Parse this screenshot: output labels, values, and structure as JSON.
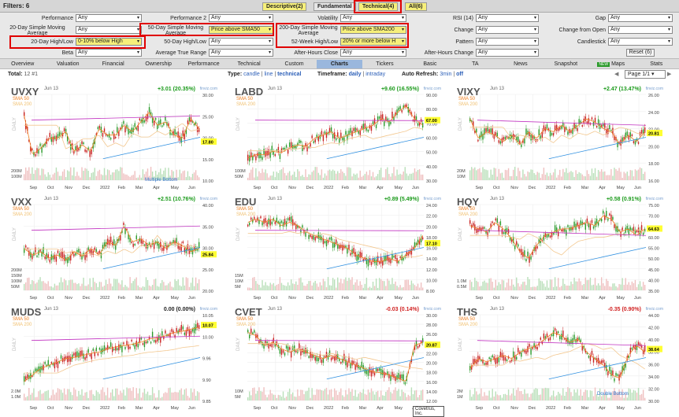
{
  "filters_label": "Filters: 6",
  "filter_tabs": [
    "Descriptive(2)",
    "Fundamental",
    "Technical(4)",
    "All(6)"
  ],
  "filter_rows": [
    [
      [
        "Performance",
        "Any"
      ],
      [
        "Performance 2",
        "Any"
      ],
      [
        "Volatility",
        "Any"
      ],
      [
        "RSI (14)",
        "Any"
      ],
      [
        "Gap",
        "Any"
      ]
    ],
    [
      [
        "20-Day Simple Moving Average",
        "Any"
      ],
      [
        "50-Day Simple Moving Average",
        "Price above SMA50"
      ],
      [
        "200-Day Simple Moving Average",
        "Price above SMA200"
      ],
      [
        "Change",
        "Any"
      ],
      [
        "Change from Open",
        "Any"
      ]
    ],
    [
      [
        "20-Day High/Low",
        "0-10% below High"
      ],
      [
        "50-Day High/Low",
        "Any"
      ],
      [
        "52-Week High/Low",
        "20% or more below H"
      ],
      [
        "Pattern",
        "Any"
      ],
      [
        "Candlestick",
        "Any"
      ]
    ],
    [
      [
        "Beta",
        "Any"
      ],
      [
        "Average True Range",
        "Any"
      ],
      [
        "After-Hours Close",
        "Any"
      ],
      [
        "After-Hours Change",
        "Any"
      ],
      [
        "",
        ""
      ]
    ]
  ],
  "reset_label": "Reset (6)",
  "views": [
    "Overview",
    "Valuation",
    "Financial",
    "Ownership",
    "Performance",
    "Technical",
    "Custom",
    "Charts",
    "Tickers",
    "Basic",
    "TA",
    "News",
    "Snapshot",
    "Maps",
    "Stats"
  ],
  "maps_badge": "NEW",
  "status": {
    "total_label": "Total:",
    "total": "12 #1",
    "type_label": "Type:",
    "type_candle": "candle",
    "type_line": "line",
    "type_technical": "technical",
    "timeframe_label": "Timeframe:",
    "timeframe_daily": "daily",
    "timeframe_intraday": "intraday",
    "refresh_label": "Auto Refresh:",
    "refresh_3min": "3min",
    "refresh_off": "off",
    "page": "Page 1/1"
  },
  "charts": [
    {
      "ticker": "UVXY",
      "date": "Jun 13",
      "change": "+3.01 (20.35%)",
      "color": "#1a9a1a",
      "price": "17.80",
      "price_pos": 0.55,
      "ann": "Multiple Bottom",
      "y": [
        "30.00",
        "25.00",
        "20.00",
        "15.00",
        "10.00"
      ],
      "vol": [
        "200M",
        "100M"
      ],
      "trend": [
        0.25,
        0.85,
        0.75,
        0.6,
        0.6,
        0.5,
        0.8,
        0.7,
        0.8,
        0.45,
        0.55,
        0.55,
        0.4,
        0.5,
        0.35,
        0.2,
        0.4,
        0.35,
        0.55,
        0.6,
        0.3,
        0.45
      ]
    },
    {
      "ticker": "LABD",
      "date": "Jun 13",
      "change": "+9.60 (16.55%)",
      "color": "#1a9a1a",
      "price": "67.00",
      "price_pos": 0.3,
      "ann": "",
      "y": [
        "90.00",
        "80.00",
        "70.00",
        "60.00",
        "50.00",
        "40.00",
        "30.00"
      ],
      "vol": [
        "100M",
        "50M"
      ],
      "trend": [
        0.9,
        0.85,
        0.85,
        0.8,
        0.82,
        0.75,
        0.7,
        0.72,
        0.6,
        0.55,
        0.5,
        0.6,
        0.55,
        0.5,
        0.45,
        0.4,
        0.3,
        0.35,
        0.2,
        0.1,
        0.3,
        0.4
      ]
    },
    {
      "ticker": "VIXY",
      "date": "Jun 13",
      "change": "+2.47 (13.47%)",
      "color": "#1a9a1a",
      "price": "20.81",
      "price_pos": 0.45,
      "ann": "",
      "y": [
        "26.00",
        "24.00",
        "22.00",
        "20.00",
        "18.00",
        "16.00"
      ],
      "vol": [
        "20M",
        "10M"
      ],
      "trend": [
        0.3,
        0.6,
        0.5,
        0.55,
        0.65,
        0.55,
        0.7,
        0.5,
        0.6,
        0.45,
        0.5,
        0.4,
        0.5,
        0.4,
        0.3,
        0.35,
        0.45,
        0.5,
        0.7,
        0.55,
        0.65,
        0.5
      ]
    },
    {
      "ticker": "VXX",
      "date": "Jun 13",
      "change": "+2.51 (10.76%)",
      "color": "#1a9a1a",
      "price": "25.84",
      "price_pos": 0.58,
      "ann": "",
      "y": [
        "40.00",
        "35.00",
        "30.00",
        "25.00",
        "20.00"
      ],
      "vol": [
        "200M",
        "150M",
        "100M",
        "50M"
      ],
      "trend": [
        0.6,
        0.7,
        0.65,
        0.75,
        0.7,
        0.78,
        0.65,
        0.72,
        0.6,
        0.7,
        0.5,
        0.55,
        0.25,
        0.5,
        0.45,
        0.55,
        0.5,
        0.6,
        0.5,
        0.55,
        0.65,
        0.6
      ]
    },
    {
      "ticker": "EDU",
      "date": "Jun 13",
      "change": "+0.89 (5.49%)",
      "color": "#1a9a1a",
      "price": "17.10",
      "price_pos": 0.45,
      "ann": "",
      "y": [
        "24.00",
        "22.00",
        "20.00",
        "18.00",
        "16.00",
        "14.00",
        "12.00",
        "10.00",
        "8.00"
      ],
      "vol": [
        "15M",
        "10M",
        "5M"
      ],
      "trend": [
        0.2,
        0.15,
        0.2,
        0.15,
        0.25,
        0.2,
        0.25,
        0.35,
        0.4,
        0.45,
        0.5,
        0.55,
        0.6,
        0.7,
        0.75,
        0.8,
        0.8,
        0.75,
        0.8,
        0.7,
        0.6,
        0.4
      ]
    },
    {
      "ticker": "HQY",
      "date": "Jun 13",
      "change": "+0.58 (0.91%)",
      "color": "#1a9a1a",
      "price": "64.63",
      "price_pos": 0.28,
      "ann": "",
      "y": [
        "75.00",
        "70.00",
        "65.00",
        "60.00",
        "55.00",
        "50.00",
        "45.00",
        "40.00",
        "35.00"
      ],
      "vol": [
        "1.0M",
        "0.5M"
      ],
      "trend": [
        0.25,
        0.3,
        0.35,
        0.2,
        0.3,
        0.45,
        0.65,
        0.75,
        0.55,
        0.4,
        0.35,
        0.3,
        0.3,
        0.25,
        0.2,
        0.25,
        0.1,
        0.15,
        0.35,
        0.3,
        0.4,
        0.3
      ]
    },
    {
      "ticker": "MUDS",
      "date": "Jun 13",
      "change": "0.00 (0.00%)",
      "color": "#222222",
      "price": "10.07",
      "price_pos": 0.12,
      "ann": "",
      "y": [
        "10.05",
        "10.00",
        "9.96",
        "9.90",
        "9.85"
      ],
      "vol": [
        "2.0M",
        "1.0M"
      ],
      "trend": [
        0.95,
        0.85,
        0.75,
        0.7,
        0.65,
        0.6,
        0.58,
        0.55,
        0.52,
        0.5,
        0.45,
        0.42,
        0.4,
        0.38,
        0.35,
        0.3,
        0.28,
        0.25,
        0.2,
        0.18,
        0.15,
        0.12
      ]
    },
    {
      "ticker": "CVET",
      "date": "Jun 13",
      "change": "-0.03 (0.14%)",
      "color": "#d02020",
      "price": "20.87",
      "price_pos": 0.35,
      "ann": "",
      "tip": "Covetrus, Inc.",
      "y": [
        "30.00",
        "28.00",
        "26.00",
        "24.00",
        "22.00",
        "20.00",
        "18.00",
        "16.00",
        "14.00",
        "12.00"
      ],
      "vol": [
        "10M",
        "5M"
      ],
      "trend": [
        0.2,
        0.25,
        0.4,
        0.35,
        0.45,
        0.5,
        0.45,
        0.5,
        0.55,
        0.6,
        0.55,
        0.6,
        0.65,
        0.7,
        0.75,
        0.8,
        0.82,
        0.85,
        0.9,
        0.95,
        0.4,
        0.35
      ]
    },
    {
      "ticker": "THS",
      "date": "Jun 13",
      "change": "-0.35 (0.90%)",
      "color": "#d02020",
      "price": "38.64",
      "price_pos": 0.4,
      "ann": "Double Bottom",
      "y": [
        "44.00",
        "42.00",
        "40.00",
        "38.00",
        "36.00",
        "34.00",
        "32.00",
        "30.00"
      ],
      "vol": [
        "2M",
        "1M"
      ],
      "trend": [
        0.75,
        0.6,
        0.65,
        0.6,
        0.55,
        0.6,
        0.5,
        0.45,
        0.4,
        0.3,
        0.2,
        0.25,
        0.35,
        0.3,
        0.5,
        0.6,
        0.7,
        0.85,
        0.9,
        0.55,
        0.4,
        0.5
      ]
    }
  ],
  "x_labels": [
    "Sep",
    "Oct",
    "Nov",
    "Dec",
    "2022",
    "Feb",
    "Mar",
    "Apr",
    "May",
    "Jun"
  ],
  "sma50_label": "SMA 50",
  "sma200_label": "SMA 200",
  "daily_label": "DAILY",
  "site_label": "finviz.com"
}
